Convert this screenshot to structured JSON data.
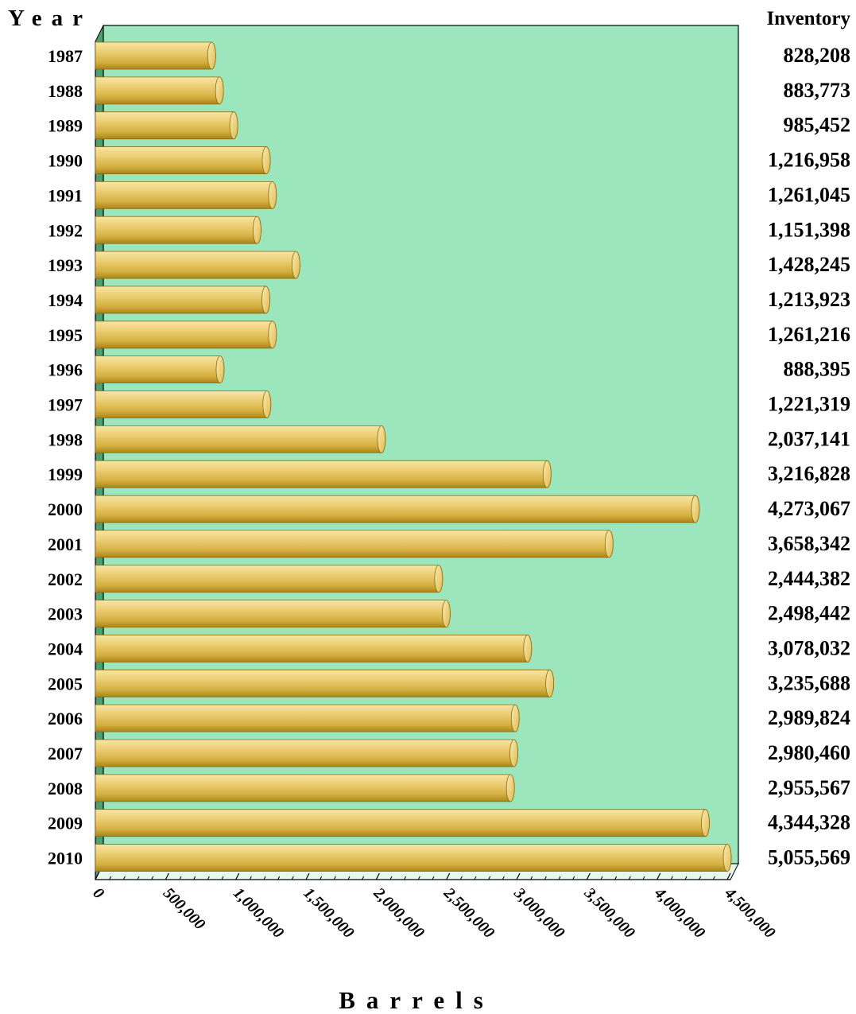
{
  "chart_data": {
    "type": "bar",
    "orientation": "horizontal",
    "title": "",
    "ylabel": "Year",
    "xlabel": "Barrels",
    "value_column_label": "Inventory",
    "xlim": [
      0,
      4500000
    ],
    "x_ticks": [
      0,
      500000,
      1000000,
      1500000,
      2000000,
      2500000,
      3000000,
      3500000,
      4000000,
      4500000
    ],
    "x_tick_labels": [
      "0",
      "500,000",
      "1,000,000",
      "1,500,000",
      "2,000,000",
      "2,500,000",
      "3,000,000",
      "3,500,000",
      "4,000,000",
      "4,500,000"
    ],
    "categories": [
      "1987",
      "1988",
      "1989",
      "1990",
      "1991",
      "1992",
      "1993",
      "1994",
      "1995",
      "1996",
      "1997",
      "1998",
      "1999",
      "2000",
      "2001",
      "2002",
      "2003",
      "2004",
      "2005",
      "2006",
      "2007",
      "2008",
      "2009",
      "2010"
    ],
    "values": [
      828208,
      883773,
      985452,
      1216958,
      1261045,
      1151398,
      1428245,
      1213923,
      1261216,
      888395,
      1221319,
      2037141,
      3216828,
      4273067,
      3658342,
      2444382,
      2498442,
      3078032,
      3235688,
      2989824,
      2980460,
      2955567,
      4344328,
      5055569
    ],
    "value_labels": [
      "828,208",
      "883,773",
      "985,452",
      "1,216,958",
      "1,261,045",
      "1,151,398",
      "1,428,245",
      "1,213,923",
      "1,261,216",
      "888,395",
      "1,221,319",
      "2,037,141",
      "3,216,828",
      "4,273,067",
      "3,658,342",
      "2,444,382",
      "2,498,442",
      "3,078,032",
      "3,235,688",
      "2,989,824",
      "2,980,460",
      "2,955,567",
      "4,344,328",
      "5,055,569"
    ],
    "grid": false,
    "colors": {
      "plot_background": "#9be6bd",
      "bar_light": "#f3dc8e",
      "bar_mid": "#d9b548",
      "bar_dark": "#b08a1c",
      "bar_cap": "#f0d878",
      "floor": "#e6f8ea"
    }
  }
}
